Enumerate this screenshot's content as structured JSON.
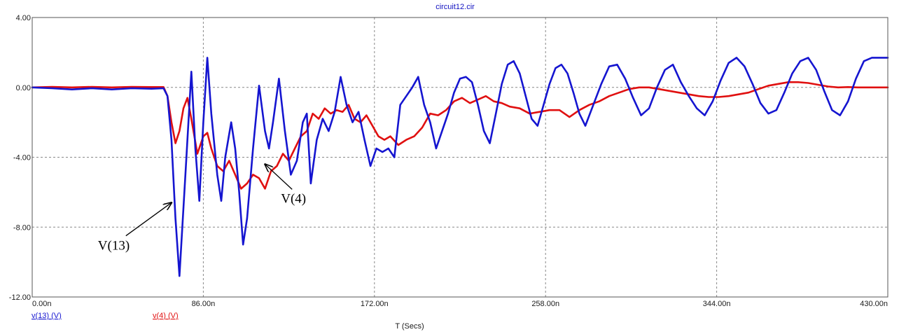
{
  "chart_data": {
    "type": "line",
    "title": "circuit12.cir",
    "xlabel": "T (Secs)",
    "ylabel": "",
    "xlim": [
      0,
      430
    ],
    "ylim": [
      -12,
      4
    ],
    "x_ticks": [
      "0.00n",
      "86.00n",
      "172.00n",
      "258.00n",
      "344.00n",
      "430.00n"
    ],
    "x_tick_values": [
      0,
      86,
      172,
      258,
      344,
      430
    ],
    "y_ticks": [
      "4.00",
      "0.00",
      "-4.00",
      "-8.00",
      "-12.00"
    ],
    "y_tick_values": [
      4,
      0,
      -4,
      -8,
      -12
    ],
    "grid": true,
    "legend_position": "bottom-left",
    "series": [
      {
        "name": "v(13) (V)",
        "color": "#1515d0",
        "x": [
          0,
          10,
          20,
          30,
          40,
          50,
          60,
          66,
          68,
          70,
          72,
          74,
          77,
          80,
          82,
          84,
          86,
          88,
          90,
          93,
          95,
          97,
          100,
          102,
          104,
          106,
          108,
          111,
          114,
          117,
          119,
          121,
          124,
          127,
          130,
          133,
          136,
          138,
          140,
          143,
          146,
          149,
          152,
          155,
          158,
          161,
          164,
          167,
          170,
          173,
          176,
          179,
          182,
          185,
          188,
          191,
          194,
          197,
          200,
          203,
          206,
          209,
          212,
          215,
          218,
          221,
          224,
          227,
          230,
          233,
          236,
          239,
          242,
          245,
          248,
          251,
          254,
          257,
          260,
          263,
          266,
          269,
          272,
          275,
          278,
          282,
          286,
          290,
          294,
          298,
          302,
          306,
          310,
          314,
          318,
          322,
          326,
          330,
          334,
          338,
          342,
          346,
          350,
          354,
          358,
          362,
          366,
          370,
          374,
          378,
          382,
          386,
          390,
          394,
          398,
          402,
          406,
          410,
          414,
          418,
          422,
          426,
          430
        ],
        "values": [
          0.0,
          -0.05,
          -0.12,
          -0.05,
          -0.12,
          -0.05,
          -0.08,
          -0.05,
          -0.5,
          -3.0,
          -7.5,
          -10.8,
          -5.0,
          0.9,
          -3.5,
          -6.5,
          -2.0,
          1.7,
          -1.5,
          -5.0,
          -6.5,
          -4.0,
          -2.0,
          -3.5,
          -6.0,
          -9.0,
          -7.5,
          -3.5,
          0.1,
          -2.5,
          -3.5,
          -2.0,
          0.5,
          -2.5,
          -5.0,
          -4.2,
          -2.0,
          -1.5,
          -5.5,
          -3.0,
          -1.8,
          -2.5,
          -1.4,
          0.6,
          -1.0,
          -2.0,
          -1.4,
          -3.0,
          -4.5,
          -3.5,
          -3.7,
          -3.5,
          -4.0,
          -1.0,
          -0.5,
          0.0,
          0.6,
          -1.0,
          -2.0,
          -3.5,
          -2.5,
          -1.5,
          -0.3,
          0.5,
          0.6,
          0.3,
          -1.0,
          -2.5,
          -3.2,
          -1.5,
          0.2,
          1.3,
          1.5,
          0.8,
          -0.5,
          -1.8,
          -2.2,
          -1.0,
          0.2,
          1.1,
          1.3,
          0.8,
          -0.3,
          -1.5,
          -2.2,
          -1.0,
          0.2,
          1.2,
          1.3,
          0.5,
          -0.6,
          -1.6,
          -1.2,
          0.0,
          1.0,
          1.3,
          0.3,
          -0.5,
          -1.2,
          -1.6,
          -0.8,
          0.4,
          1.4,
          1.7,
          1.2,
          0.2,
          -0.9,
          -1.5,
          -1.3,
          -0.3,
          0.8,
          1.5,
          1.7,
          1.0,
          -0.2,
          -1.3,
          -1.6,
          -0.8,
          0.5,
          1.5,
          1.7,
          1.7,
          1.7
        ]
      },
      {
        "name": "v(4) (V)",
        "color": "#e01010",
        "x": [
          0,
          10,
          20,
          30,
          40,
          50,
          60,
          66,
          68,
          70,
          72,
          74,
          76,
          78,
          80,
          83,
          86,
          88,
          90,
          93,
          96,
          99,
          102,
          105,
          108,
          111,
          114,
          117,
          120,
          123,
          126,
          129,
          132,
          135,
          138,
          141,
          144,
          147,
          150,
          153,
          156,
          159,
          162,
          165,
          168,
          171,
          174,
          177,
          180,
          184,
          188,
          192,
          196,
          200,
          204,
          208,
          212,
          216,
          220,
          224,
          228,
          232,
          236,
          240,
          245,
          250,
          255,
          260,
          265,
          270,
          275,
          280,
          285,
          290,
          295,
          300,
          305,
          310,
          315,
          320,
          325,
          330,
          335,
          340,
          345,
          350,
          355,
          360,
          365,
          370,
          375,
          380,
          385,
          390,
          395,
          400,
          405,
          410,
          415,
          420,
          425,
          430
        ],
        "values": [
          0.0,
          0.03,
          0.0,
          0.03,
          0.0,
          0.03,
          0.02,
          0.02,
          -0.5,
          -2.0,
          -3.2,
          -2.5,
          -1.2,
          -0.6,
          -1.8,
          -3.8,
          -2.8,
          -2.6,
          -3.5,
          -4.5,
          -4.8,
          -4.2,
          -5.0,
          -5.8,
          -5.5,
          -5.0,
          -5.2,
          -5.8,
          -4.8,
          -4.5,
          -3.8,
          -4.2,
          -3.5,
          -2.8,
          -2.5,
          -1.5,
          -1.8,
          -1.2,
          -1.5,
          -1.3,
          -1.4,
          -1.0,
          -1.8,
          -2.0,
          -1.6,
          -2.2,
          -2.8,
          -3.0,
          -2.8,
          -3.3,
          -3.0,
          -2.8,
          -2.3,
          -1.5,
          -1.6,
          -1.3,
          -0.8,
          -0.6,
          -0.9,
          -0.7,
          -0.5,
          -0.8,
          -0.9,
          -1.1,
          -1.2,
          -1.5,
          -1.4,
          -1.3,
          -1.3,
          -1.7,
          -1.3,
          -1.0,
          -0.8,
          -0.5,
          -0.3,
          -0.1,
          0.0,
          0.0,
          -0.1,
          -0.2,
          -0.3,
          -0.4,
          -0.5,
          -0.55,
          -0.55,
          -0.5,
          -0.4,
          -0.3,
          -0.1,
          0.1,
          0.2,
          0.3,
          0.3,
          0.25,
          0.15,
          0.05,
          0.0,
          0.02,
          0.0,
          0.0,
          0.0,
          0.0
        ]
      }
    ],
    "annotations": [
      {
        "text": "V(13)",
        "x": 33,
        "y": -9.3,
        "arrow_to": [
          70,
          -6.6
        ]
      },
      {
        "text": "V(4)",
        "x": 125,
        "y": -6.6,
        "arrow_to": [
          117,
          -4.4
        ]
      }
    ]
  }
}
